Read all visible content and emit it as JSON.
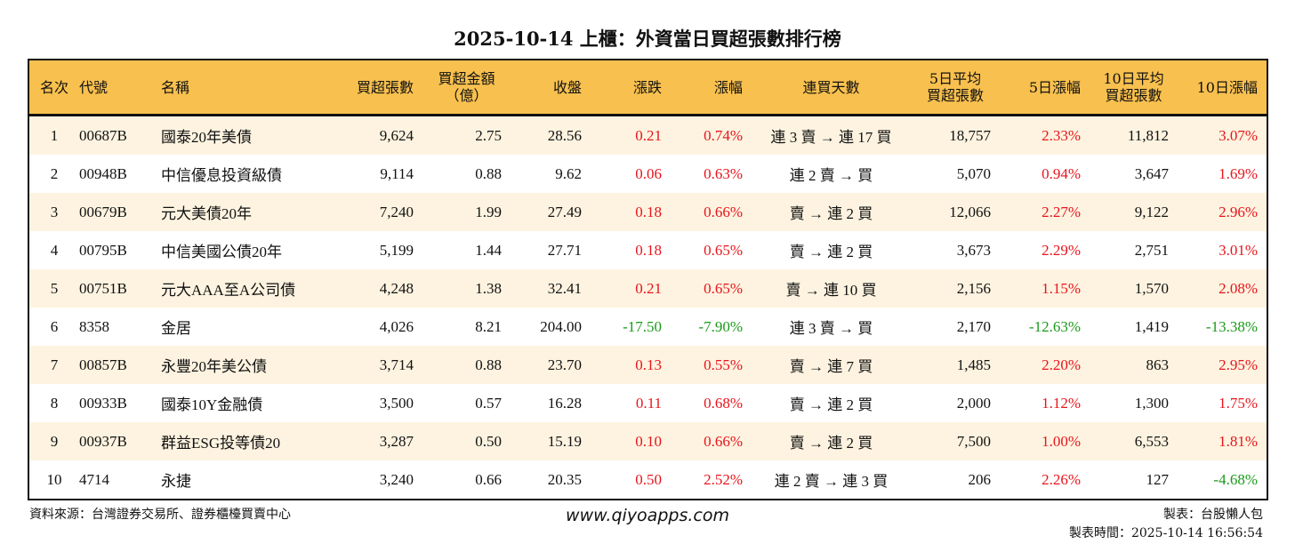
{
  "title": "2025-10-14 上櫃：外資當日買超張數排行榜",
  "colors": {
    "header_bg": "#F8C04E",
    "odd_row_bg": "#FDF3E0",
    "up": "#E8141C",
    "down": "#1A9A1A"
  },
  "headers": [
    "名次",
    "代號",
    "名稱",
    "買超張數",
    "買超金額\n（億）",
    "收盤",
    "漲跌",
    "漲幅",
    "連買天數",
    "5日平均\n買超張數",
    "5日漲幅",
    "10日平均\n買超張數",
    "10日漲幅"
  ],
  "rows": [
    [
      "1",
      "00687B",
      "國泰20年美債",
      "9,624",
      "2.75",
      "28.56",
      "0.21",
      "0.74%",
      "連 3 賣 → 連 17 買",
      "18,757",
      "2.33%",
      "11,812",
      "3.07%"
    ],
    [
      "2",
      "00948B",
      "中信優息投資級債",
      "9,114",
      "0.88",
      "9.62",
      "0.06",
      "0.63%",
      "連 2 賣 → 買",
      "5,070",
      "0.94%",
      "3,647",
      "1.69%"
    ],
    [
      "3",
      "00679B",
      "元大美債20年",
      "7,240",
      "1.99",
      "27.49",
      "0.18",
      "0.66%",
      "賣 → 連 2 買",
      "12,066",
      "2.27%",
      "9,122",
      "2.96%"
    ],
    [
      "4",
      "00795B",
      "中信美國公債20年",
      "5,199",
      "1.44",
      "27.71",
      "0.18",
      "0.65%",
      "賣 → 連 2 買",
      "3,673",
      "2.29%",
      "2,751",
      "3.01%"
    ],
    [
      "5",
      "00751B",
      "元大AAA至A公司債",
      "4,248",
      "1.38",
      "32.41",
      "0.21",
      "0.65%",
      "賣 → 連 10 買",
      "2,156",
      "1.15%",
      "1,570",
      "2.08%"
    ],
    [
      "6",
      "8358",
      "金居",
      "4,026",
      "8.21",
      "204.00",
      "-17.50",
      "-7.90%",
      "連 3 賣 → 買",
      "2,170",
      "-12.63%",
      "1,419",
      "-13.38%"
    ],
    [
      "7",
      "00857B",
      "永豐20年美公債",
      "3,714",
      "0.88",
      "23.70",
      "0.13",
      "0.55%",
      "賣 → 連 7 買",
      "1,485",
      "2.20%",
      "863",
      "2.95%"
    ],
    [
      "8",
      "00933B",
      "國泰10Y金融債",
      "3,500",
      "0.57",
      "16.28",
      "0.11",
      "0.68%",
      "賣 → 連 2 買",
      "2,000",
      "1.12%",
      "1,300",
      "1.75%"
    ],
    [
      "9",
      "00937B",
      "群益ESG投等債20",
      "3,287",
      "0.50",
      "15.19",
      "0.10",
      "0.66%",
      "賣 → 連 2 買",
      "7,500",
      "1.00%",
      "6,553",
      "1.81%"
    ],
    [
      "10",
      "4714",
      "永捷",
      "3,240",
      "0.66",
      "20.35",
      "0.50",
      "2.52%",
      "連 2 賣 → 連 3 買",
      "206",
      "2.26%",
      "127",
      "-4.68%"
    ]
  ],
  "footer": {
    "source": "資料來源：台灣證券交易所、證券櫃檯買賣中心",
    "website": "www.qiyoapps.com",
    "maker": "製表：台股懶人包",
    "time": "製表時間：2025-10-14 16:56:54"
  }
}
